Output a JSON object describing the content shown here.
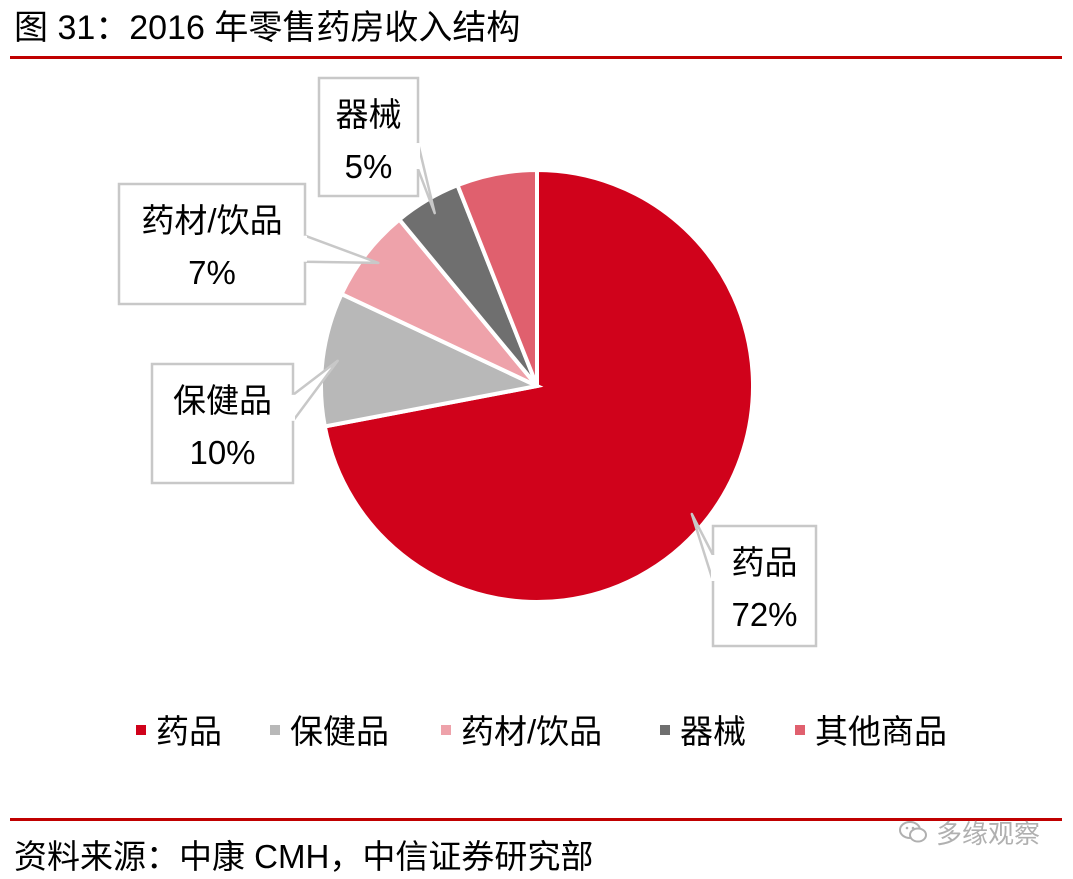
{
  "title": "图 31：2016 年零售药房收入结构",
  "source": "资料来源：中康 CMH，中信证券研究部",
  "watermark": "多缘观察",
  "chart_data": {
    "type": "pie",
    "title": "",
    "unit": "%",
    "legend_position": "bottom",
    "slices": [
      {
        "name": "药品",
        "value": 72,
        "label": "72%",
        "color": "#d0021b",
        "callout": true
      },
      {
        "name": "保健品",
        "value": 10,
        "label": "10%",
        "color": "#b8b8b8",
        "callout": true
      },
      {
        "name": "药材/饮品",
        "value": 7,
        "label": "7%",
        "color": "#eea2aa",
        "callout": true
      },
      {
        "name": "器械",
        "value": 5,
        "label": "5%",
        "color": "#6f6f6f",
        "callout": true
      },
      {
        "name": "其他商品",
        "value": 6,
        "label": "",
        "color": "#e0606e",
        "callout": false
      }
    ]
  }
}
